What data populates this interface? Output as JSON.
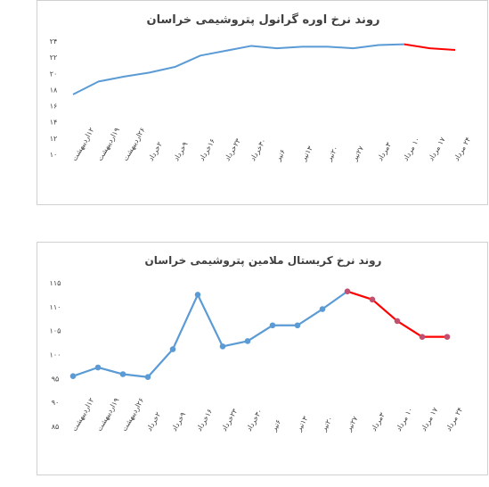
{
  "chart_data": [
    {
      "type": "line",
      "title": "روند نرخ اوره گرانول پتروشیمی خراسان",
      "categories": [
        "۱۲اردیبهشت",
        "۱۹اردیبهشت",
        "۲۶اردیبهشت",
        "۲خرداد",
        "۹خرداد",
        "۱۶خرداد",
        "۲۳خرداد",
        "۳۰خرداد",
        "۶تیر",
        "۱۳تیر",
        "۲۰تیر",
        "۲۷تیر",
        "۳مرداد",
        "۱۰ مرداد",
        "۱۷ مرداد",
        "۲۴ مرداد"
      ],
      "values": [
        17.4,
        19.0,
        19.6,
        20.1,
        20.8,
        22.2,
        22.8,
        23.4,
        23.1,
        23.3,
        23.3,
        23.1,
        23.5,
        23.6,
        23.1,
        22.9
      ],
      "ylim": [
        10,
        24
      ],
      "yticks": [
        "۱۰",
        "۱۲",
        "۱۴",
        "۱۶",
        "۱۸",
        "۲۰",
        "۲۲",
        "۲۴"
      ],
      "yticks_values": [
        10,
        12,
        14,
        16,
        18,
        20,
        22,
        24
      ],
      "forecast_from_index": 13,
      "colors": {
        "actual": "#5b9bd5",
        "forecast": "#ff0000"
      },
      "markers": false,
      "grid": false
    },
    {
      "type": "line",
      "title": "روند نرخ کریستال ملامین پتروشیمی خراسان",
      "categories": [
        "۱۲اردیبهشت",
        "۱۹اردیبهشت",
        "۲۶اردیبهشت",
        "۲خرداد",
        "۹خرداد",
        "۱۶خرداد",
        "۲۳خرداد",
        "۳۰خرداد",
        "۶تیر",
        "۱۳تیر",
        "۲۰تیر",
        "۲۷تیر",
        "۳مرداد",
        "۱۰ مرداد",
        "۱۷ مرداد",
        "۲۴ مرداد"
      ],
      "values": [
        95.5,
        97.3,
        95.9,
        95.3,
        101.1,
        112.5,
        101.7,
        102.8,
        106.1,
        106.1,
        109.5,
        113.2,
        111.5,
        107.0,
        103.7,
        103.7
      ],
      "ylim": [
        85,
        115
      ],
      "yticks": [
        "۸۵",
        "۹۰",
        "۹۵",
        "۱۰۰",
        "۱۰۵",
        "۱۱۰",
        "۱۱۵"
      ],
      "yticks_values": [
        85,
        90,
        95,
        100,
        105,
        110,
        115
      ],
      "forecast_from_index": 11,
      "colors": {
        "actual": "#5b9bd5",
        "forecast": "#ff0000",
        "forecast_marker": "#c0506f"
      },
      "markers": true,
      "grid": false
    }
  ]
}
